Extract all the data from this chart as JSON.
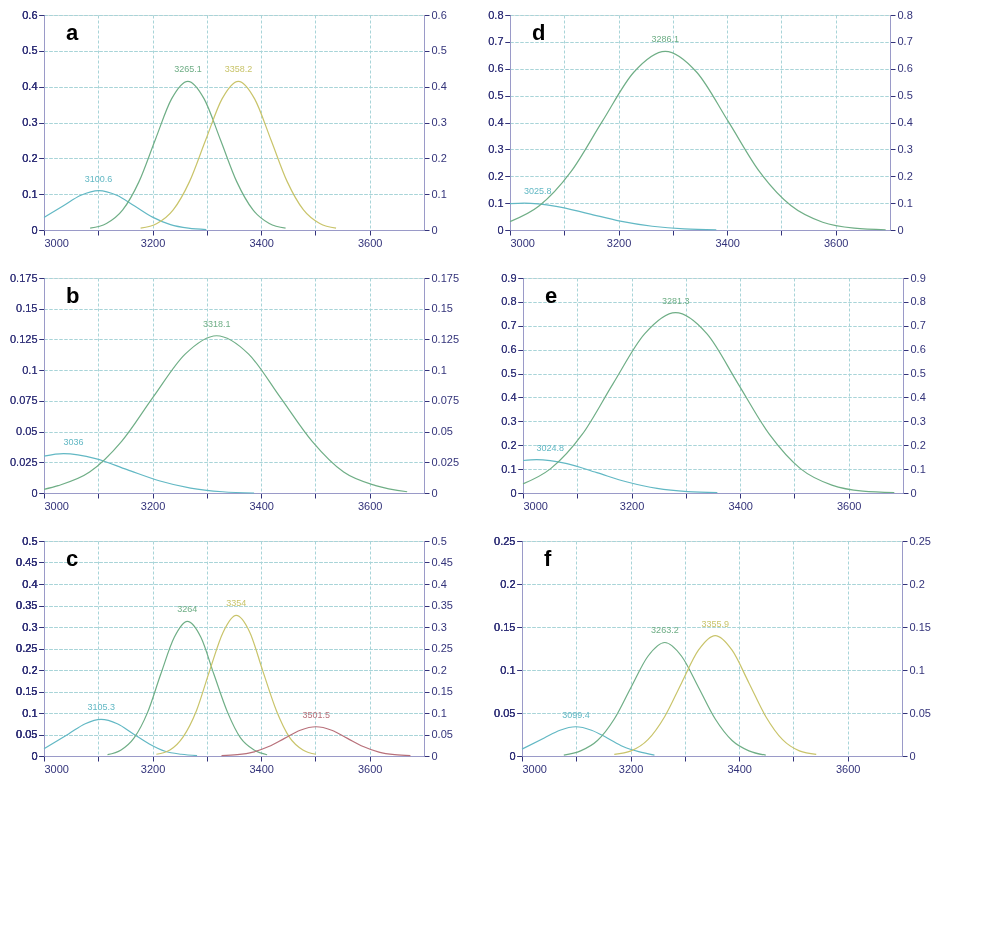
{
  "chart_data": [
    {
      "type": "line",
      "annotations": [
        "a",
        {
          "text": "3100.6",
          "x": 3100.6,
          "y": 0.11
        },
        {
          "text": "3265.1",
          "x": 3265.1,
          "y": 0.415
        },
        {
          "text": "3358.2",
          "x": 3358.2,
          "y": 0.415
        }
      ],
      "xlim": [
        3000,
        3700
      ],
      "xticks": [
        3000,
        {
          "value": 3100,
          "label": null
        },
        3200,
        {
          "value": 3300,
          "label": null
        },
        3400,
        {
          "value": 3500,
          "label": null
        },
        3600
      ],
      "ylim": [
        0,
        0.6
      ],
      "yticks": [
        0,
        0.1,
        0.2,
        0.3,
        0.4,
        0.5,
        0.6
      ],
      "y2lim": [
        0,
        0.6
      ],
      "y2ticks": [
        0,
        0.1,
        0.2,
        0.3,
        0.4,
        0.5,
        0.6
      ],
      "grid": true,
      "series": [
        {
          "color": "#62b8c4",
          "x": [
            3000,
            3035,
            3068,
            3101,
            3134,
            3167,
            3200,
            3233,
            3266,
            3299
          ],
          "values": [
            0.035,
            0.067,
            0.097,
            0.11,
            0.097,
            0.067,
            0.036,
            0.015,
            0.005,
            0.001
          ]
        },
        {
          "color": "#6fae86",
          "x": [
            3085,
            3115,
            3145,
            3175,
            3205,
            3235,
            3265,
            3295,
            3325,
            3355,
            3385,
            3415,
            3445
          ],
          "values": [
            0.005,
            0.018,
            0.056,
            0.135,
            0.252,
            0.366,
            0.415,
            0.366,
            0.252,
            0.135,
            0.056,
            0.018,
            0.005
          ]
        },
        {
          "color": "#c9c46a",
          "x": [
            3178,
            3208,
            3238,
            3268,
            3298,
            3328,
            3358,
            3388,
            3418,
            3448,
            3478,
            3508,
            3538
          ],
          "values": [
            0.005,
            0.018,
            0.056,
            0.135,
            0.252,
            0.366,
            0.415,
            0.366,
            0.252,
            0.135,
            0.056,
            0.018,
            0.005
          ]
        }
      ]
    },
    {
      "type": "line",
      "annotations": [
        "d",
        {
          "text": "3025.8",
          "x": 3025.8,
          "y": 0.1
        },
        {
          "text": "3286.1",
          "x": 3286.1,
          "y": 0.665
        }
      ],
      "xlim": [
        3000,
        3700
      ],
      "xticks": [
        3000,
        {
          "value": 3100,
          "label": null
        },
        3200,
        {
          "value": 3300,
          "label": null
        },
        3400,
        {
          "value": 3500,
          "label": null
        },
        3600
      ],
      "ylim": [
        0,
        0.8
      ],
      "yticks": [
        0,
        0.1,
        0.2,
        0.3,
        0.4,
        0.5,
        0.6,
        0.7,
        0.8
      ],
      "y2lim": [
        0,
        0.8
      ],
      "y2ticks": [
        0,
        0.1,
        0.2,
        0.3,
        0.4,
        0.5,
        0.6,
        0.7,
        0.8
      ],
      "grid": true,
      "series": [
        {
          "color": "#62b8c4",
          "x": [
            3000,
            3026,
            3085,
            3144,
            3203,
            3262,
            3321,
            3380
          ],
          "values": [
            0.098,
            0.1,
            0.088,
            0.061,
            0.033,
            0.014,
            0.004,
            0.001
          ]
        },
        {
          "color": "#6fae86",
          "x": [
            3000,
            3054,
            3112,
            3170,
            3228,
            3286,
            3344,
            3402,
            3460,
            3518,
            3576,
            3634,
            3692
          ],
          "values": [
            0.031,
            0.09,
            0.216,
            0.404,
            0.587,
            0.665,
            0.587,
            0.404,
            0.216,
            0.09,
            0.029,
            0.007,
            0.001
          ]
        }
      ]
    },
    {
      "type": "line",
      "annotations": [
        "b",
        {
          "text": "3036",
          "x": 3036,
          "y": 0.032
        },
        {
          "text": "3318.1",
          "x": 3318.1,
          "y": 0.128
        }
      ],
      "xlim": [
        3000,
        3700
      ],
      "xticks": [
        3000,
        {
          "value": 3100,
          "label": null
        },
        3200,
        {
          "value": 3300,
          "label": null
        },
        3400,
        {
          "value": 3500,
          "label": null
        },
        3600
      ],
      "ylim": [
        0,
        0.175
      ],
      "yticks": [
        0,
        0.025,
        0.05,
        0.075,
        0.1,
        0.125,
        0.15,
        0.175
      ],
      "y2lim": [
        0,
        0.175
      ],
      "y2ticks": [
        0,
        0.025,
        0.05,
        0.075,
        0.1,
        0.125,
        0.15,
        0.175
      ],
      "grid": true,
      "series": [
        {
          "color": "#62b8c4",
          "x": [
            3000,
            3036,
            3095,
            3153,
            3212,
            3270,
            3329,
            3387
          ],
          "values": [
            0.03,
            0.032,
            0.028,
            0.019,
            0.01,
            0.004,
            0.001,
            0
          ]
        },
        {
          "color": "#6fae86",
          "x": [
            3000,
            3026,
            3084,
            3143,
            3201,
            3260,
            3318,
            3377,
            3435,
            3494,
            3552,
            3611,
            3669
          ],
          "values": [
            0.003,
            0.006,
            0.017,
            0.042,
            0.078,
            0.113,
            0.128,
            0.113,
            0.078,
            0.042,
            0.017,
            0.006,
            0.001
          ]
        }
      ]
    },
    {
      "type": "line",
      "annotations": [
        "e",
        {
          "text": "3024.8",
          "x": 3024.8,
          "y": 0.14
        },
        {
          "text": "3281.3",
          "x": 3281.3,
          "y": 0.755
        }
      ],
      "xlim": [
        3000,
        3700
      ],
      "xticks": [
        3000,
        {
          "value": 3100,
          "label": null
        },
        3200,
        {
          "value": 3300,
          "label": null
        },
        3400,
        {
          "value": 3500,
          "label": null
        },
        3600
      ],
      "ylim": [
        0,
        0.9
      ],
      "yticks": [
        0,
        0.1,
        0.2,
        0.3,
        0.4,
        0.5,
        0.6,
        0.7,
        0.8,
        0.9
      ],
      "y2lim": [
        0,
        0.9
      ],
      "y2ticks": [
        0,
        0.1,
        0.2,
        0.3,
        0.4,
        0.5,
        0.6,
        0.7,
        0.8,
        0.9
      ],
      "grid": true,
      "series": [
        {
          "color": "#62b8c4",
          "x": [
            3000,
            3025,
            3081,
            3136,
            3192,
            3247,
            3303,
            3358
          ],
          "values": [
            0.136,
            0.14,
            0.123,
            0.085,
            0.046,
            0.019,
            0.006,
            0.002
          ]
        },
        {
          "color": "#6fae86",
          "x": [
            3000,
            3051,
            3109,
            3166,
            3224,
            3281,
            3339,
            3396,
            3454,
            3511,
            3569,
            3626,
            3684
          ],
          "values": [
            0.038,
            0.102,
            0.245,
            0.458,
            0.666,
            0.755,
            0.666,
            0.458,
            0.245,
            0.102,
            0.033,
            0.008,
            0.002
          ]
        }
      ]
    },
    {
      "type": "line",
      "annotations": [
        "c",
        {
          "text": "3105.3",
          "x": 3105.3,
          "y": 0.085
        },
        {
          "text": "3264",
          "x": 3264,
          "y": 0.313
        },
        {
          "text": "3354",
          "x": 3354,
          "y": 0.327
        },
        {
          "text": "3501.5",
          "x": 3501.5,
          "y": 0.068
        }
      ],
      "xlim": [
        3000,
        3700
      ],
      "xticks": [
        3000,
        {
          "value": 3100,
          "label": null
        },
        3200,
        {
          "value": 3300,
          "label": null
        },
        3400,
        {
          "value": 3500,
          "label": null
        },
        3600
      ],
      "ylim": [
        0,
        0.5
      ],
      "yticks": [
        0,
        0.05,
        0.1,
        0.15,
        0.2,
        0.25,
        0.3,
        0.35,
        0.4,
        0.45,
        0.5
      ],
      "y2lim": [
        0,
        0.5
      ],
      "y2ticks": [
        0,
        0.05,
        0.1,
        0.15,
        0.2,
        0.25,
        0.3,
        0.35,
        0.4,
        0.45,
        0.5
      ],
      "grid": true,
      "series": [
        {
          "color": "#62b8c4",
          "x": [
            3000,
            3046,
            3076,
            3105,
            3135,
            3164,
            3194,
            3223,
            3253,
            3282
          ],
          "values": [
            0.017,
            0.052,
            0.075,
            0.085,
            0.075,
            0.052,
            0.028,
            0.011,
            0.004,
            0.001
          ]
        },
        {
          "color": "#6fae86",
          "x": [
            3117,
            3142,
            3166,
            3191,
            3215,
            3240,
            3264,
            3289,
            3313,
            3338,
            3362,
            3387,
            3411
          ],
          "values": [
            0.003,
            0.014,
            0.042,
            0.102,
            0.19,
            0.276,
            0.313,
            0.276,
            0.19,
            0.102,
            0.042,
            0.014,
            0.003
          ]
        },
        {
          "color": "#c9c46a",
          "x": [
            3207,
            3232,
            3256,
            3281,
            3305,
            3330,
            3354,
            3379,
            3403,
            3428,
            3452,
            3477,
            3501
          ],
          "values": [
            0.004,
            0.014,
            0.044,
            0.106,
            0.198,
            0.288,
            0.327,
            0.288,
            0.198,
            0.106,
            0.044,
            0.014,
            0.004
          ]
        },
        {
          "color": "#b8707a",
          "x": [
            3327,
            3356,
            3385,
            3414,
            3443,
            3472,
            3501,
            3530,
            3559,
            3588,
            3617,
            3646,
            3675
          ],
          "values": [
            0.001,
            0.003,
            0.009,
            0.022,
            0.041,
            0.06,
            0.068,
            0.06,
            0.041,
            0.022,
            0.009,
            0.003,
            0.001
          ]
        }
      ]
    },
    {
      "type": "line",
      "annotations": [
        "f",
        {
          "text": "3099.4",
          "x": 3099.4,
          "y": 0.034
        },
        {
          "text": "3263.2",
          "x": 3263.2,
          "y": 0.132
        },
        {
          "text": "3355.9",
          "x": 3355.9,
          "y": 0.14
        }
      ],
      "xlim": [
        3000,
        3700
      ],
      "xticks": [
        3000,
        {
          "value": 3100,
          "label": null
        },
        3200,
        {
          "value": 3300,
          "label": null
        },
        3400,
        {
          "value": 3500,
          "label": null
        },
        3600
      ],
      "ylim": [
        0,
        0.25
      ],
      "yticks": [
        0,
        0.05,
        0.1,
        0.15,
        0.2,
        0.25
      ],
      "y2lim": [
        0,
        0.25
      ],
      "y2ticks": [
        0,
        0.05,
        0.1,
        0.15,
        0.2,
        0.25
      ],
      "grid": true,
      "series": [
        {
          "color": "#62b8c4",
          "x": [
            3000,
            3041,
            3070,
            3099,
            3128,
            3157,
            3186,
            3215,
            3244
          ],
          "values": [
            0.008,
            0.021,
            0.03,
            0.034,
            0.03,
            0.021,
            0.011,
            0.005,
            0.001
          ]
        },
        {
          "color": "#6fae86",
          "x": [
            3077,
            3108,
            3139,
            3170,
            3201,
            3232,
            3263,
            3294,
            3325,
            3356,
            3387,
            3418,
            3449
          ],
          "values": [
            0.001,
            0.006,
            0.018,
            0.043,
            0.08,
            0.116,
            0.132,
            0.116,
            0.08,
            0.043,
            0.018,
            0.006,
            0.001
          ]
        },
        {
          "color": "#c9c46a",
          "x": [
            3170,
            3201,
            3232,
            3263,
            3294,
            3325,
            3356,
            3387,
            3418,
            3449,
            3480,
            3511,
            3542
          ],
          "values": [
            0.002,
            0.006,
            0.019,
            0.046,
            0.085,
            0.123,
            0.14,
            0.123,
            0.085,
            0.046,
            0.019,
            0.006,
            0.002
          ]
        }
      ]
    }
  ]
}
